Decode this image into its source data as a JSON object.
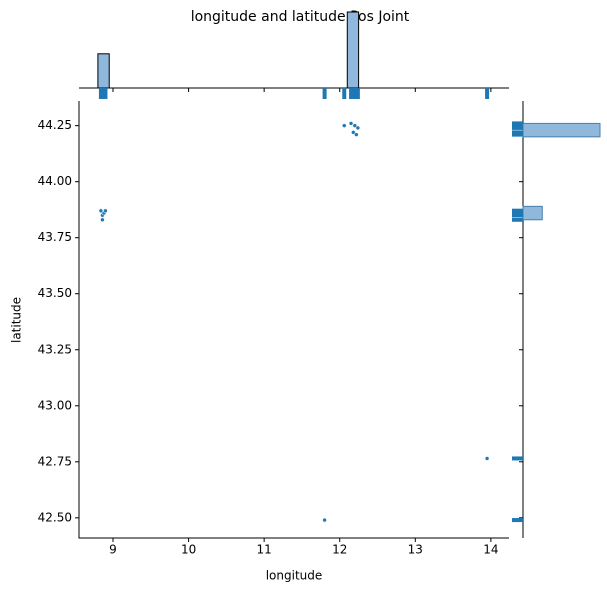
{
  "chart_data": {
    "type": "scatter",
    "title": "longitude and latitude Pos Joint",
    "x_label": "longitude",
    "y_label": "latitude",
    "color": "#1f77b4",
    "hist_color": "#8fb8dc",
    "x": [
      8.84,
      8.86,
      8.88,
      8.86,
      8.9,
      12.06,
      12.15,
      12.2,
      12.24,
      12.18,
      12.22,
      13.95,
      11.8
    ],
    "values": [
      43.87,
      43.85,
      43.86,
      43.83,
      43.87,
      44.25,
      44.26,
      44.25,
      44.24,
      44.22,
      44.21,
      42.765,
      42.49
    ],
    "xlim": [
      8.55,
      14.24
    ],
    "ylim": [
      42.41,
      44.36
    ],
    "xticks": [
      9,
      10,
      11,
      12,
      13,
      14
    ],
    "yticks": [
      {
        "value": 42.5,
        "label": "42.50"
      },
      {
        "value": 42.75,
        "label": "42.75"
      },
      {
        "value": 43,
        "label": "43.00"
      },
      {
        "value": 43.25,
        "label": "43.25"
      },
      {
        "value": 43.5,
        "label": "43.50"
      },
      {
        "value": 43.75,
        "label": "43.75"
      },
      {
        "value": 44,
        "label": "44.00"
      },
      {
        "value": 44.25,
        "label": "44.25"
      }
    ],
    "x_hist": {
      "bins": [
        8.8,
        8.95,
        12.1,
        12.25
      ],
      "counts": [
        4.5,
        0,
        10
      ],
      "countlim": [
        0,
        10
      ]
    },
    "y_hist": {
      "bins": [
        43.83,
        43.89,
        44.2,
        44.26
      ],
      "counts": [
        2.5,
        0,
        10
      ],
      "countlim": [
        0,
        10
      ]
    }
  }
}
